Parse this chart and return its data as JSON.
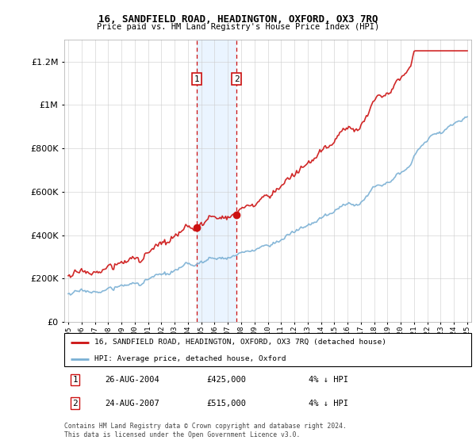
{
  "title": "16, SANDFIELD ROAD, HEADINGTON, OXFORD, OX3 7RQ",
  "subtitle": "Price paid vs. HM Land Registry's House Price Index (HPI)",
  "hpi_label": "HPI: Average price, detached house, Oxford",
  "property_label": "16, SANDFIELD ROAD, HEADINGTON, OXFORD, OX3 7RQ (detached house)",
  "transaction1_date": "26-AUG-2004",
  "transaction1_price": 425000,
  "transaction1_hpi": "4% ↓ HPI",
  "transaction2_date": "24-AUG-2007",
  "transaction2_price": 515000,
  "transaction2_hpi": "4% ↓ HPI",
  "footer": "Contains HM Land Registry data © Crown copyright and database right 2024.\nThis data is licensed under the Open Government Licence v3.0.",
  "hpi_color": "#7ab0d4",
  "property_color": "#cc1111",
  "shade_color": "#ddeeff",
  "transaction_line_color": "#cc1111",
  "ylim_min": 0,
  "ylim_max": 1300000,
  "sale1_year": 2004.65,
  "sale2_year": 2007.65,
  "sale1_price": 425000,
  "sale2_price": 515000,
  "hpi_scale": 1.04,
  "start_year": 1995,
  "end_year": 2025
}
